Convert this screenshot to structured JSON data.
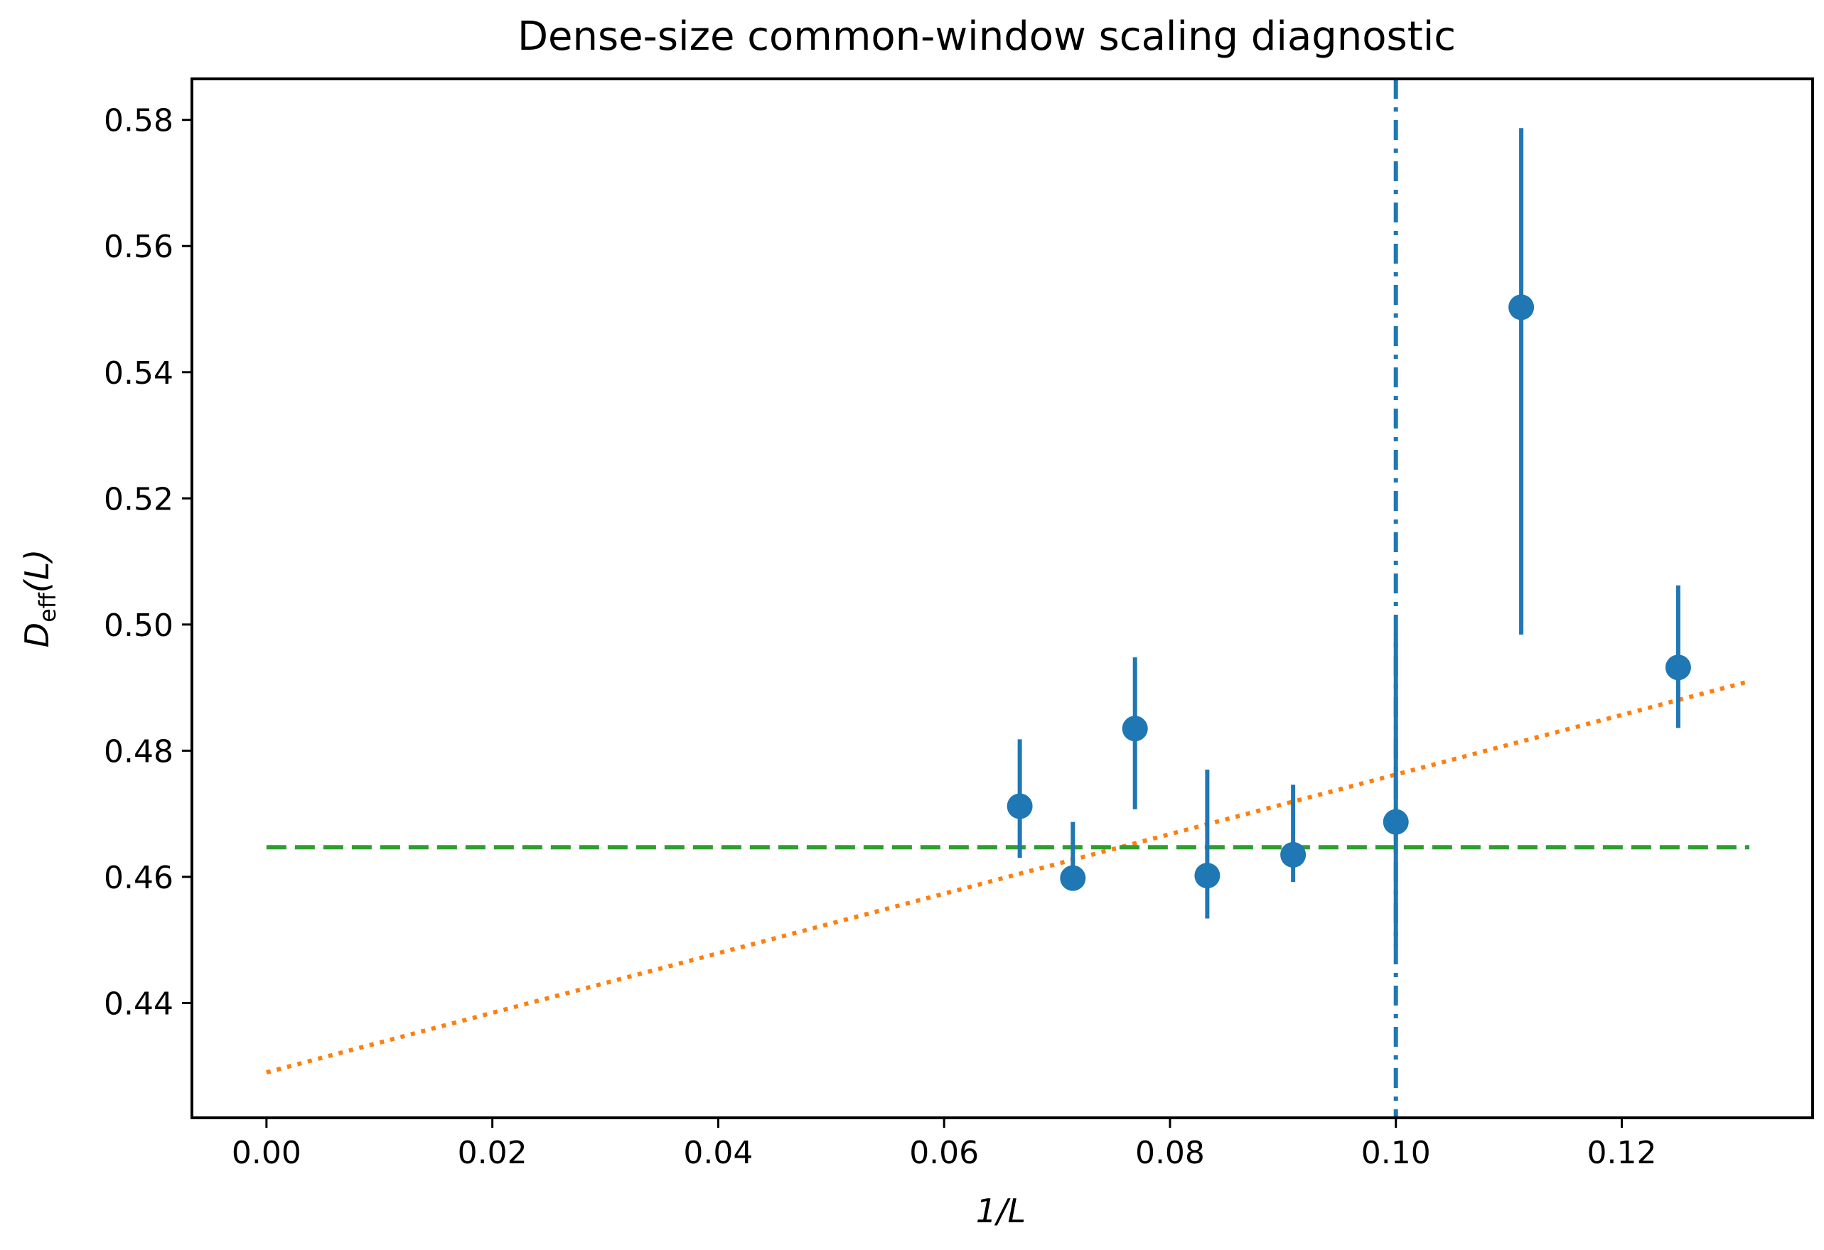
{
  "chart_data": {
    "type": "scatter",
    "title": "Dense-size common-window scaling diagnostic",
    "xlabel": "1/L",
    "ylabel": {
      "base": "D",
      "subscript": "eff",
      "suffix": "(L)"
    },
    "xlim": [
      -0.0066,
      0.1369
    ],
    "ylim": [
      0.4218,
      0.5865
    ],
    "xticks": [
      0.0,
      0.02,
      0.04,
      0.06,
      0.08,
      0.1,
      0.12
    ],
    "xtick_labels": [
      "0.00",
      "0.02",
      "0.04",
      "0.06",
      "0.08",
      "0.10",
      "0.12"
    ],
    "yticks": [
      0.44,
      0.46,
      0.48,
      0.5,
      0.52,
      0.54,
      0.56,
      0.58
    ],
    "ytick_labels": [
      "0.44",
      "0.46",
      "0.48",
      "0.50",
      "0.52",
      "0.54",
      "0.56",
      "0.58"
    ],
    "grid": false,
    "legend": "none",
    "colors": {
      "points": "#1f77b4",
      "fit": "#ff7f0e",
      "mean": "#2ca02c"
    },
    "series": [
      {
        "style": "errorbar",
        "color": "#1f77b4",
        "points": [
          {
            "x": 0.0667,
            "y": 0.4712,
            "yerr_low": 0.463,
            "yerr_high": 0.4818
          },
          {
            "x": 0.0714,
            "y": 0.4598,
            "yerr_low": 0.4596,
            "yerr_high": 0.4687
          },
          {
            "x": 0.0769,
            "y": 0.4835,
            "yerr_low": 0.4707,
            "yerr_high": 0.4948
          },
          {
            "x": 0.0833,
            "y": 0.4602,
            "yerr_low": 0.4534,
            "yerr_high": 0.477
          },
          {
            "x": 0.0909,
            "y": 0.4635,
            "yerr_low": 0.4592,
            "yerr_high": 0.4746
          },
          {
            "x": 0.1,
            "y": 0.4687,
            "yerr_low": 0.449,
            "yerr_high": 0.4985
          },
          {
            "x": 0.1111,
            "y": 0.5503,
            "yerr_low": 0.4984,
            "yerr_high": 0.5787
          },
          {
            "x": 0.125,
            "y": 0.4932,
            "yerr_low": 0.4836,
            "yerr_high": 0.5062
          }
        ]
      },
      {
        "style": "dotted-line",
        "color": "#ff7f0e",
        "x": [
          0.0,
          0.1313
        ],
        "y": [
          0.429,
          0.491
        ]
      },
      {
        "style": "dashed-line",
        "color": "#2ca02c",
        "x": [
          0.0,
          0.1313
        ],
        "y": [
          0.4647,
          0.4647
        ]
      },
      {
        "style": "dashdot-vline",
        "color": "#1f77b4",
        "x": 0.1
      }
    ]
  }
}
